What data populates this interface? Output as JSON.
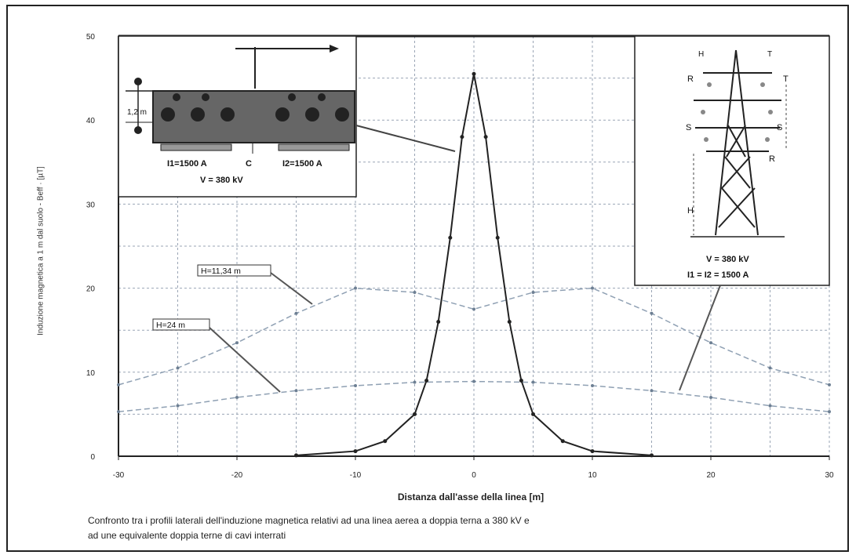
{
  "chart_data": {
    "type": "line",
    "xlabel": "Distanza dall'asse della linea [m]",
    "ylabel": "Induzione magnetica a 1 m dal suolo - Beff · [µT]",
    "xlim": [
      -30,
      30
    ],
    "ylim": [
      0,
      50
    ],
    "x_ticks": [
      "-30",
      "-20",
      "-10",
      "0",
      "10",
      "20",
      "30"
    ],
    "y_ticks": [
      "0",
      "10",
      "20",
      "30",
      "40",
      "50"
    ],
    "grid": true,
    "series": [
      {
        "name": "H=11,34 m",
        "color": "#8fa0b3",
        "dash": true,
        "x": [
          -30,
          -25,
          -20,
          -15,
          -10,
          -5,
          0,
          5,
          10,
          15,
          20,
          25,
          30
        ],
        "y": [
          8.5,
          10.5,
          13.5,
          17,
          20,
          19.5,
          17.5,
          19.5,
          20,
          17,
          13.5,
          10.5,
          8.5
        ]
      },
      {
        "name": "H=24 m",
        "color": "#8fa0b3",
        "dash": true,
        "x": [
          -30,
          -25,
          -20,
          -15,
          -10,
          -5,
          0,
          5,
          10,
          15,
          20,
          25,
          30
        ],
        "y": [
          5.3,
          6.0,
          7.0,
          7.8,
          8.4,
          8.8,
          8.9,
          8.8,
          8.4,
          7.8,
          7.0,
          6.0,
          5.3
        ]
      },
      {
        "name": "cavi interrati",
        "color": "#222222",
        "dash": false,
        "x": [
          -15,
          -10,
          -7.5,
          -5,
          -4,
          -3,
          -2,
          -1,
          0,
          1,
          2,
          3,
          4,
          5,
          7.5,
          10,
          15
        ],
        "y": [
          0.1,
          0.6,
          1.8,
          5,
          9,
          16,
          26,
          38,
          45.5,
          38,
          26,
          16,
          9,
          5,
          1.8,
          0.6,
          0.1
        ]
      }
    ],
    "annotations": [
      "H=11,34 m",
      "H=24 m"
    ],
    "inset_left": {
      "dim_label": "1,2 m",
      "i1_label": "I1=1500 A",
      "c_label": "C",
      "i2_label": "I2=1500 A",
      "v_label": "V = 380 kV"
    },
    "inset_right": {
      "tower_labels": [
        "H",
        "R",
        "S",
        "T",
        "S",
        "T",
        "R"
      ],
      "h_label": "H",
      "v_label": "V = 380 kV",
      "i_label": "I1 = I2 = 1500 A"
    }
  },
  "caption": {
    "line1": "Confronto tra i profili laterali dell'induzione magnetica relativi ad una linea aerea a doppia terna a 380 kV e",
    "line2": "ad une equivalente doppia terne di cavi interrati"
  }
}
